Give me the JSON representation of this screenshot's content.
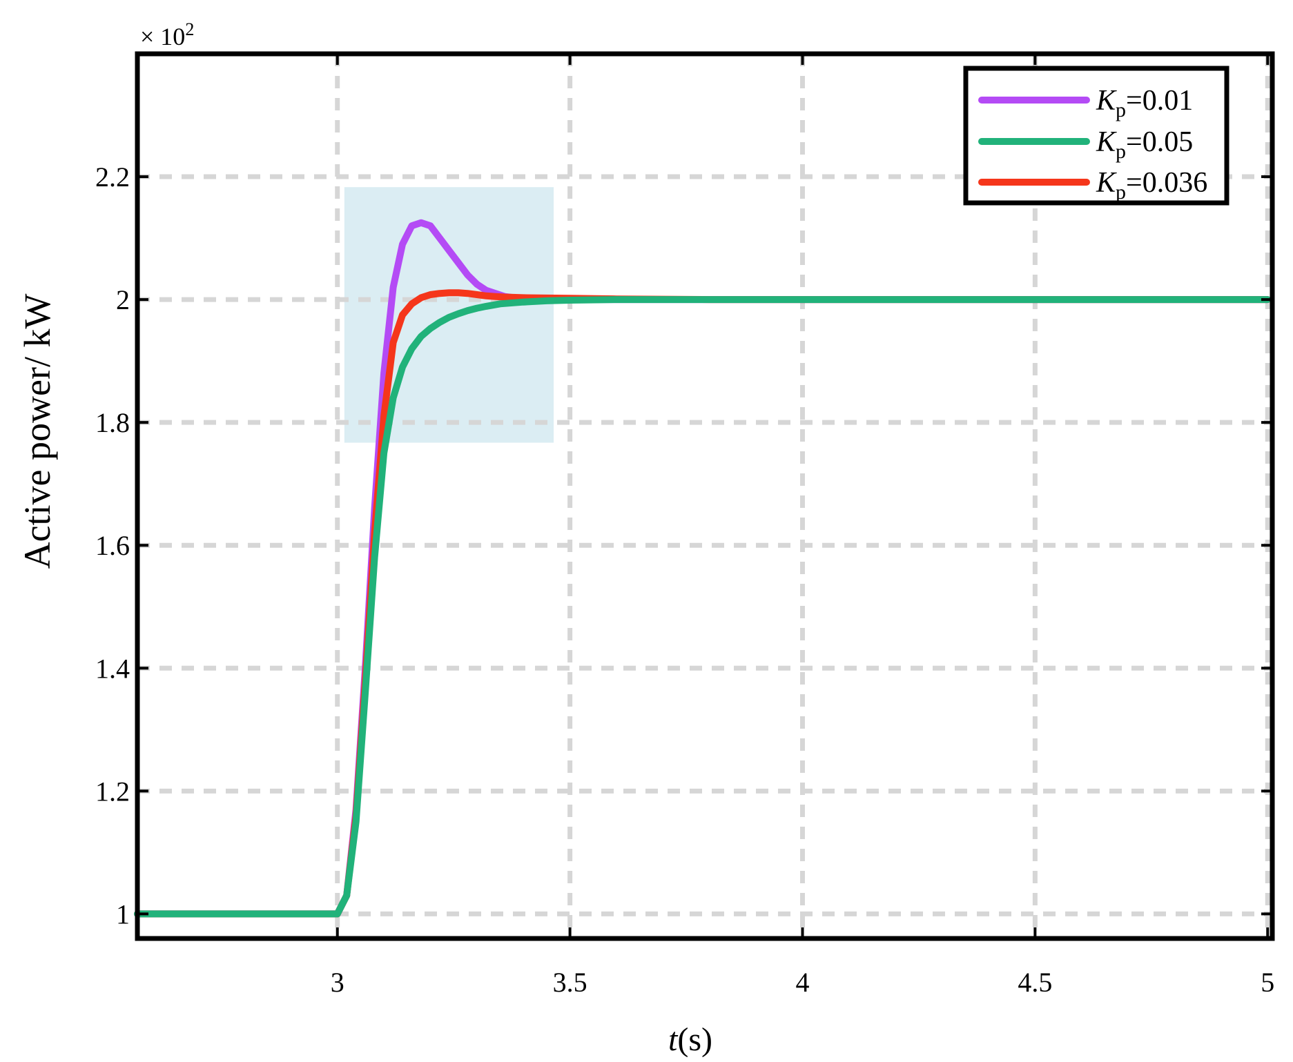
{
  "chart_data": {
    "type": "line",
    "xlabel_italic": "t",
    "xlabel_paren": "(s)",
    "ylabel": "Active power/ kW",
    "y_multiplier": "× 10",
    "y_multiplier_exp": "2",
    "xlim": [
      2.57,
      5.01
    ],
    "ylim": [
      0.96,
      2.4
    ],
    "xticks": [
      3,
      3.5,
      4,
      4.5,
      5
    ],
    "xtick_labels": [
      "3",
      "3.5",
      "4",
      "4.5",
      "5"
    ],
    "yticks": [
      1,
      1.2,
      1.4,
      1.6,
      1.8,
      2,
      2.2
    ],
    "ytick_labels": [
      "1",
      "1.2",
      "1.4",
      "1.6",
      "1.8",
      "2",
      "2.2"
    ],
    "grid": true,
    "legend_position": "top-right",
    "highlight_region": {
      "x": [
        3.015,
        3.465
      ],
      "y": [
        1.767,
        2.183
      ],
      "color": "#dbedf3"
    },
    "series": [
      {
        "legend_symbol": "K",
        "legend_subscript": "p",
        "legend_value": "=0.01",
        "color": "#b44bf5",
        "x": [
          2.57,
          3.0,
          3.02,
          3.04,
          3.06,
          3.08,
          3.1,
          3.12,
          3.14,
          3.16,
          3.18,
          3.2,
          3.22,
          3.24,
          3.26,
          3.28,
          3.3,
          3.32,
          3.34,
          3.36,
          3.38,
          3.4,
          3.44,
          3.5,
          3.6,
          3.8,
          5.0
        ],
        "y": [
          1.0,
          1.0,
          1.03,
          1.17,
          1.4,
          1.66,
          1.88,
          2.02,
          2.09,
          2.12,
          2.125,
          2.12,
          2.1,
          2.08,
          2.06,
          2.04,
          2.025,
          2.015,
          2.01,
          2.005,
          2.003,
          2.001,
          2.0,
          2.0,
          2.0,
          2.0,
          2.0
        ]
      },
      {
        "legend_symbol": "K",
        "legend_subscript": "p",
        "legend_value": "=0.05",
        "color": "#21b27a",
        "x": [
          2.57,
          3.0,
          3.02,
          3.04,
          3.06,
          3.08,
          3.1,
          3.12,
          3.14,
          3.16,
          3.18,
          3.2,
          3.22,
          3.24,
          3.26,
          3.28,
          3.3,
          3.32,
          3.35,
          3.4,
          3.45,
          3.5,
          3.6,
          3.8,
          5.0
        ],
        "y": [
          1.0,
          1.0,
          1.03,
          1.15,
          1.36,
          1.58,
          1.75,
          1.84,
          1.89,
          1.92,
          1.94,
          1.953,
          1.963,
          1.971,
          1.977,
          1.982,
          1.986,
          1.989,
          1.993,
          1.996,
          1.998,
          1.999,
          2.0,
          2.0,
          2.0
        ]
      },
      {
        "legend_symbol": "K",
        "legend_subscript": "p",
        "legend_value": "=0.036",
        "color": "#f5361b",
        "x": [
          2.57,
          3.0,
          3.02,
          3.04,
          3.06,
          3.08,
          3.1,
          3.12,
          3.14,
          3.16,
          3.18,
          3.2,
          3.22,
          3.24,
          3.26,
          3.28,
          3.3,
          3.32,
          3.34,
          3.36,
          3.4,
          3.5,
          3.6,
          3.8,
          5.0
        ],
        "y": [
          1.0,
          1.0,
          1.03,
          1.16,
          1.38,
          1.62,
          1.81,
          1.93,
          1.975,
          1.993,
          2.003,
          2.008,
          2.01,
          2.011,
          2.011,
          2.01,
          2.008,
          2.006,
          2.005,
          2.004,
          2.003,
          2.002,
          2.001,
          2.0,
          2.0
        ]
      }
    ]
  }
}
